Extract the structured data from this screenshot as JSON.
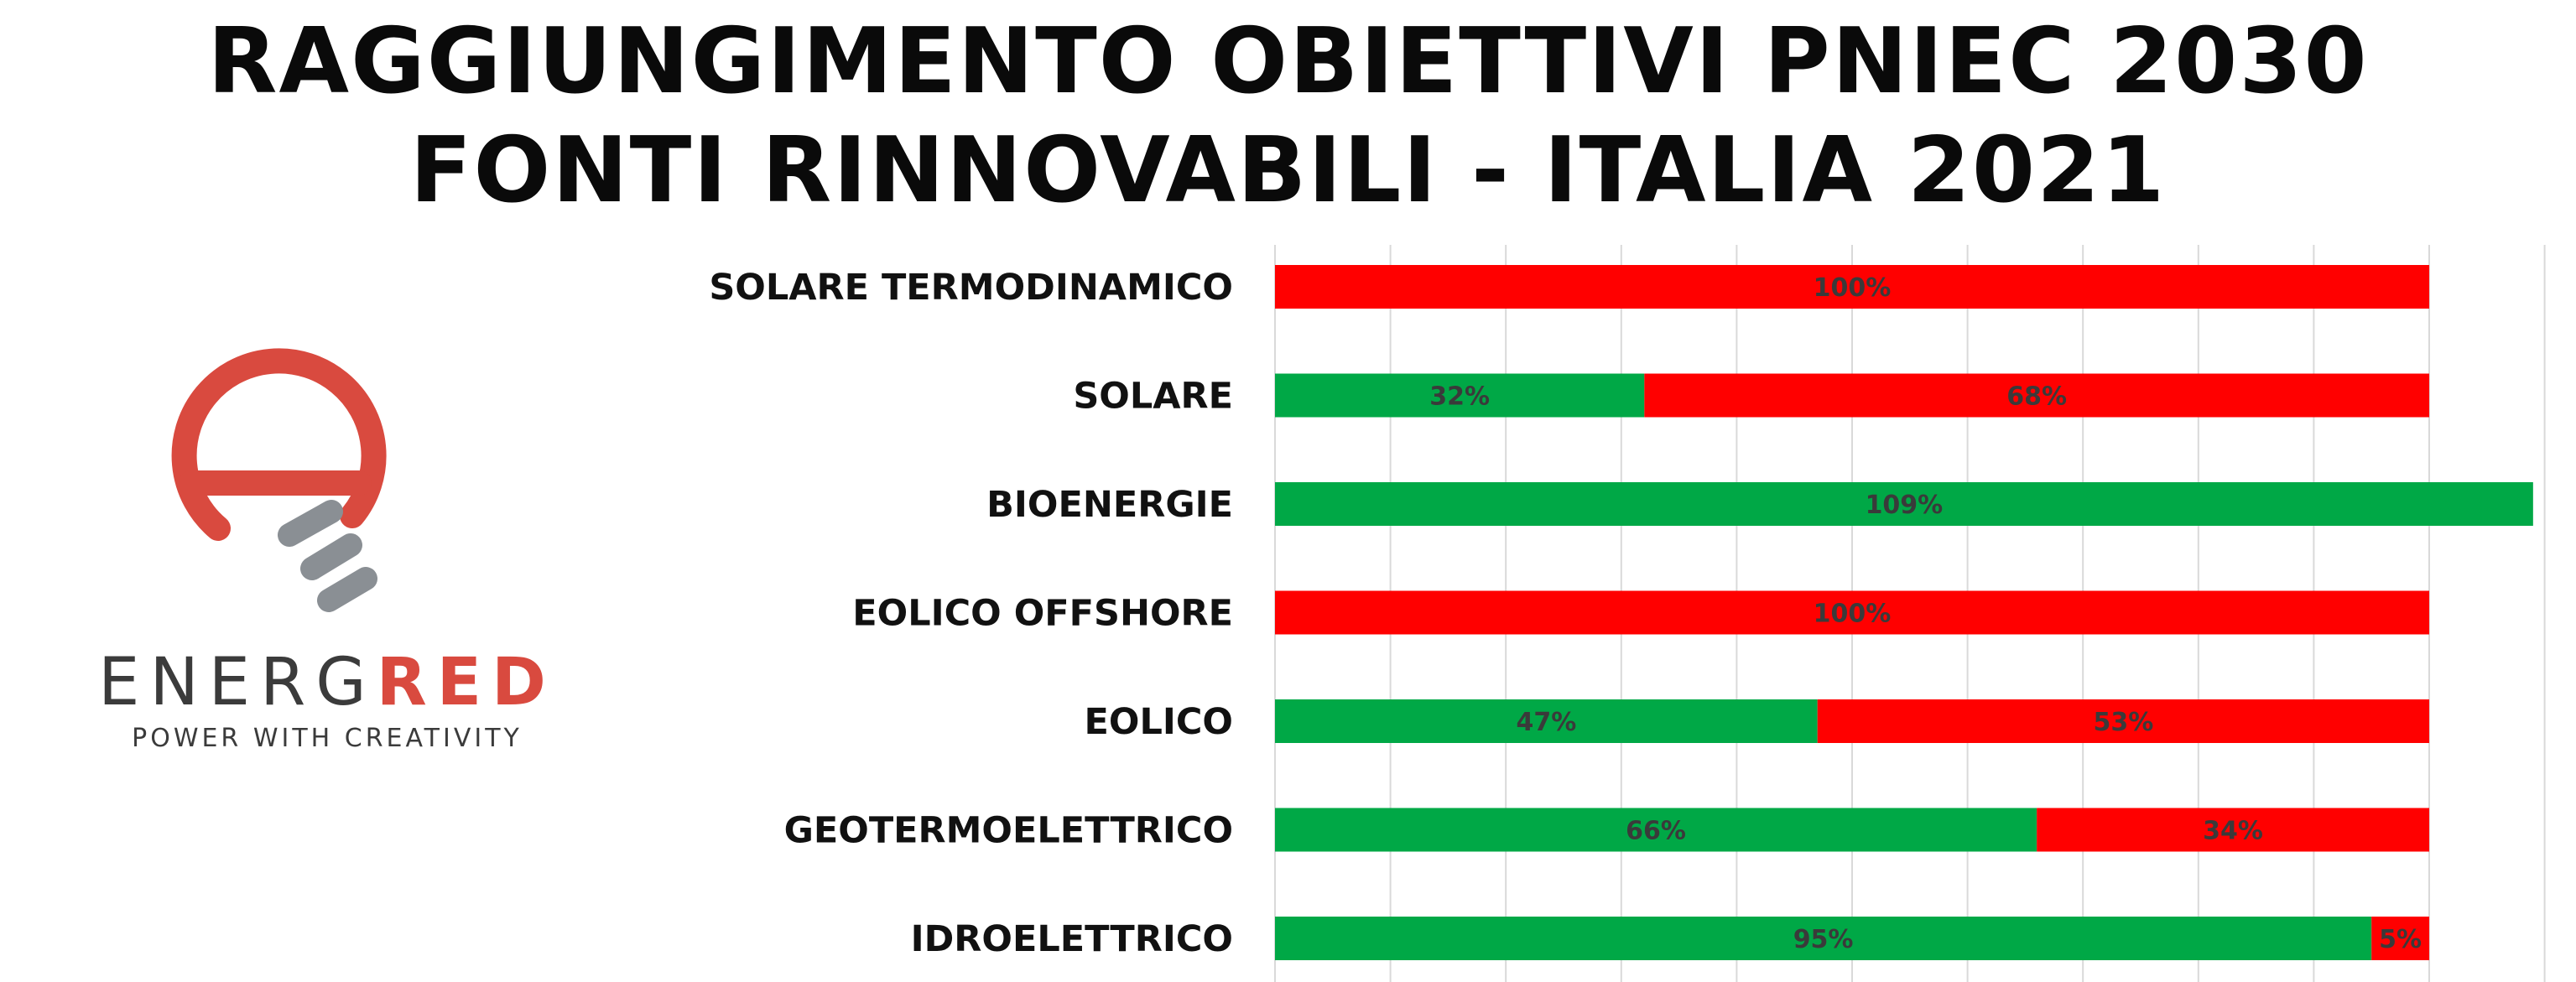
{
  "header": {
    "title_line_1": "RAGGIUNGIMENTO OBIETTIVI PNIEC 2030",
    "title_line_2": "FONTI RINNOVABILI - ITALIA 2021"
  },
  "logo": {
    "brand_part_1": "ENERG",
    "brand_part_2": "RED",
    "tagline": "POWER WITH CREATIVITY",
    "icon": "bulb-e-icon",
    "colors": {
      "red": "#d94a3f",
      "gray": "#8a8f94",
      "dark": "#3b3b3b"
    }
  },
  "chart_data": {
    "type": "bar",
    "orientation": "horizontal",
    "stacked": true,
    "categories": [
      "SOLARE TERMODINAMICO",
      "SOLARE",
      "BIOENERGIE",
      "EOLICO OFFSHORE",
      "EOLICO",
      "GEOTERMOELETTRICO",
      "IDROELETTRICO"
    ],
    "series": [
      {
        "color": "#00a846",
        "values": [
          0,
          32,
          109,
          0,
          47,
          66,
          95
        ]
      },
      {
        "color": "#ff0000",
        "values": [
          100,
          68,
          0,
          100,
          53,
          34,
          5
        ]
      }
    ],
    "data_labels": [
      [
        "",
        "100%"
      ],
      [
        "32%",
        "68%"
      ],
      [
        "109%",
        ""
      ],
      [
        "",
        "100%"
      ],
      [
        "47%",
        "53%"
      ],
      [
        "66%",
        "34%"
      ],
      [
        "95%",
        "5%"
      ]
    ],
    "xlim": [
      0,
      110
    ],
    "grid": true,
    "grid_step": 10,
    "legend": "none"
  }
}
